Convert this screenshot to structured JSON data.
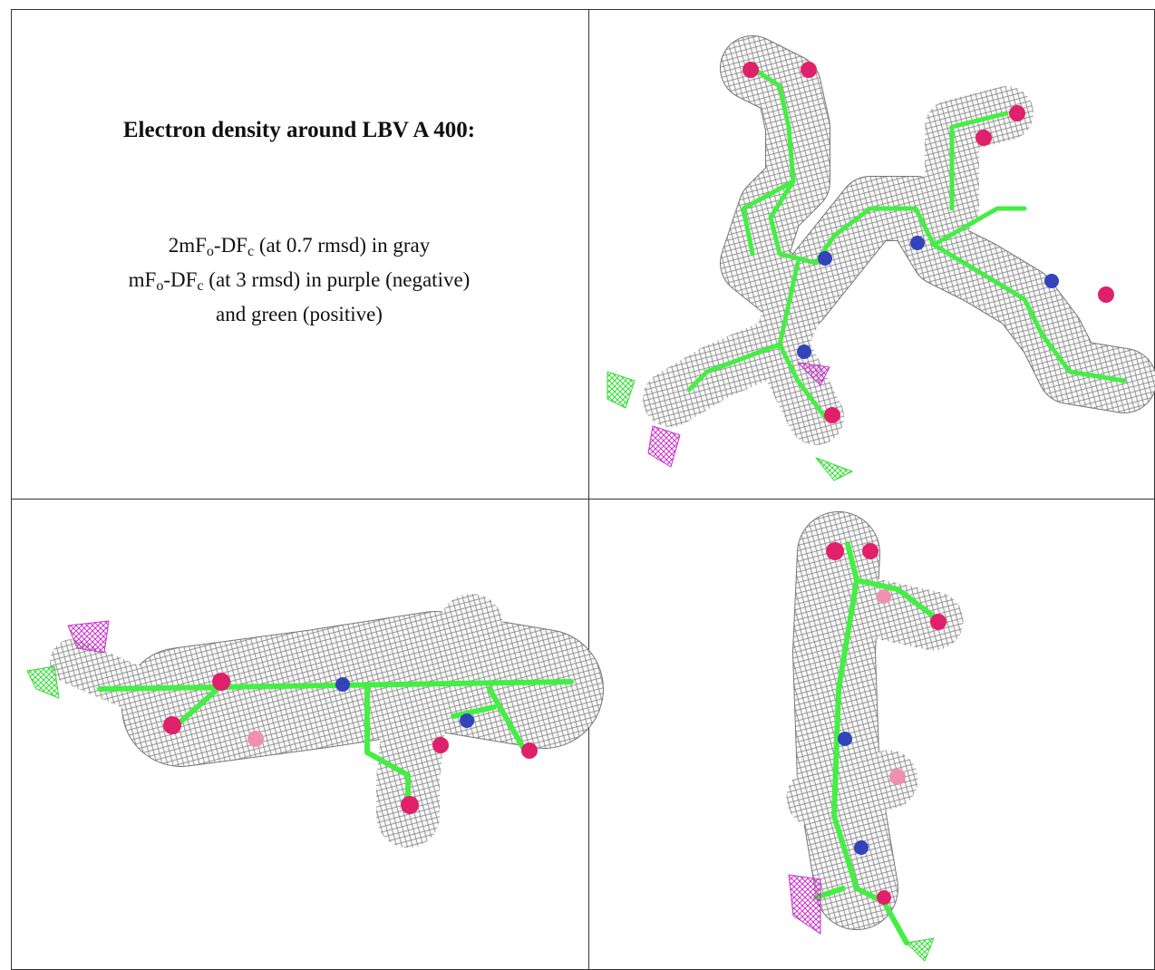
{
  "legend": {
    "title": "Electron density around LBV A 400:",
    "lines": [
      [
        "2mF",
        "o",
        "-DF",
        "c",
        " (at 0.7 rmsd) in gray"
      ],
      [
        "mF",
        "o",
        "-DF",
        "c",
        " (at 3 rmsd) in purple (negative)"
      ],
      [
        "and green (positive)"
      ]
    ]
  }
}
